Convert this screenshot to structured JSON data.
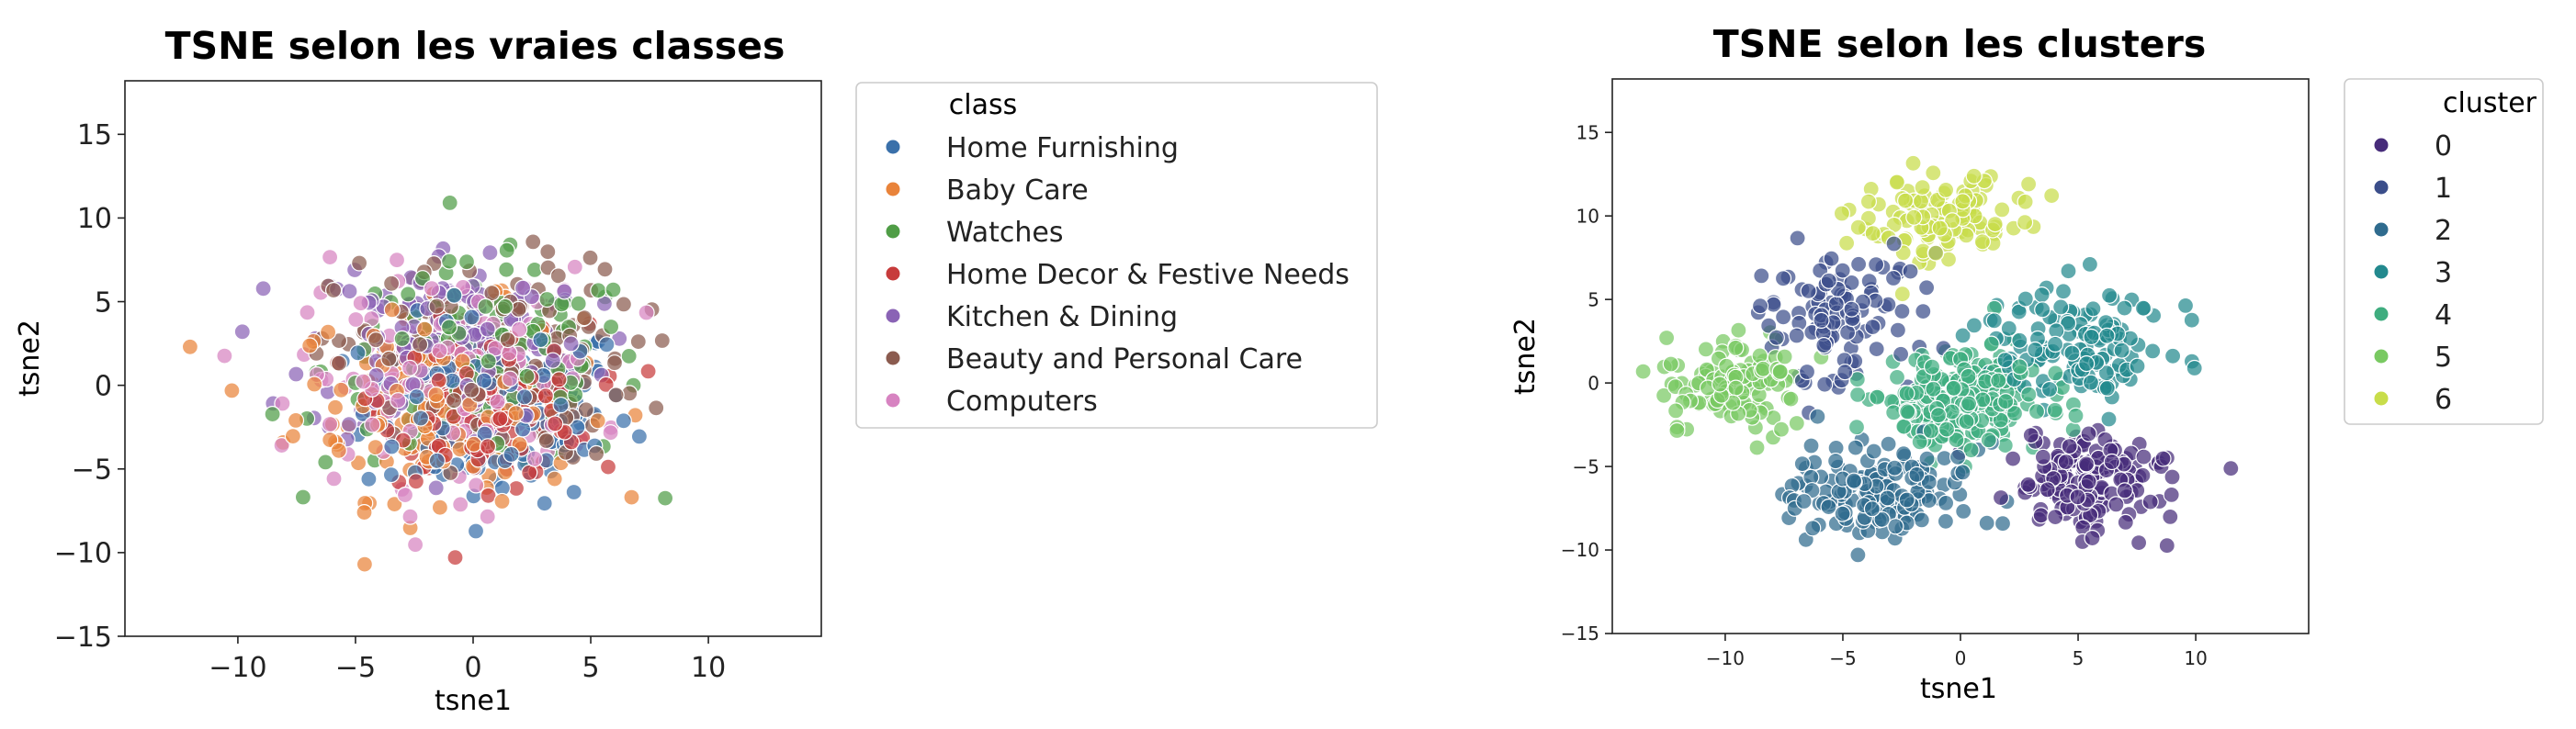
{
  "chart_data": [
    {
      "type": "scatter",
      "title": "TSNE selon les vraies classes",
      "xlabel": "tsne1",
      "ylabel": "tsne2",
      "xlim": [
        -14.8,
        14.8
      ],
      "ylim": [
        -15.0,
        18.2
      ],
      "x_ticks": [
        -10,
        -5,
        0,
        5,
        10
      ],
      "y_ticks": [
        -15,
        -10,
        -5,
        0,
        5,
        10,
        15
      ],
      "grid": false,
      "legend_placement": "outside-right",
      "legend_title": "class",
      "point_count_per_series": 150,
      "series": [
        {
          "name": "Home Furnishing",
          "color": "#3a70aa",
          "center": [
            1.0,
            -1.5
          ],
          "spread": [
            5.2,
            5.0
          ]
        },
        {
          "name": "Baby Care",
          "color": "#e9833a",
          "center": [
            -1.5,
            -1.0
          ],
          "spread": [
            5.5,
            5.2
          ]
        },
        {
          "name": "Watches",
          "color": "#4f9d46",
          "center": [
            0.5,
            1.0
          ],
          "spread": [
            6.2,
            5.5
          ]
        },
        {
          "name": "Home Decor & Festive Needs",
          "color": "#c73b3b",
          "center": [
            0.5,
            -1.0
          ],
          "spread": [
            4.0,
            4.2
          ]
        },
        {
          "name": "Kitchen & Dining",
          "color": "#8a63b5",
          "center": [
            -1.0,
            2.5
          ],
          "spread": [
            5.5,
            5.5
          ]
        },
        {
          "name": "Beauty and Personal Care",
          "color": "#8b5b4f",
          "center": [
            0.5,
            1.5
          ],
          "spread": [
            5.8,
            5.5
          ]
        },
        {
          "name": "Computers",
          "color": "#d783c1",
          "center": [
            -1.0,
            0.5
          ],
          "spread": [
            5.8,
            5.8
          ]
        }
      ]
    },
    {
      "type": "scatter",
      "title": "TSNE selon les clusters",
      "xlabel": "tsne1",
      "ylabel": "tsne2",
      "xlim": [
        -14.8,
        14.8
      ],
      "ylim": [
        -15.0,
        18.2
      ],
      "x_ticks": [
        -10,
        -5,
        0,
        5,
        10
      ],
      "y_ticks": [
        -15,
        -10,
        -5,
        0,
        5,
        10,
        15
      ],
      "grid": false,
      "legend_placement": "outside-right",
      "legend_title": "cluster",
      "series": [
        {
          "name": "0",
          "color": "#472c7a",
          "center": [
            5.5,
            -6.0
          ],
          "spread": [
            3.2,
            2.8
          ],
          "count": 150
        },
        {
          "name": "1",
          "color": "#3b4e8a",
          "center": [
            -5.5,
            4.0
          ],
          "spread": [
            3.2,
            3.5
          ],
          "count": 110
        },
        {
          "name": "2",
          "color": "#2f6b8e",
          "center": [
            -3.5,
            -6.5
          ],
          "spread": [
            3.5,
            2.6
          ],
          "count": 150
        },
        {
          "name": "3",
          "color": "#23898e",
          "center": [
            5.0,
            2.5
          ],
          "spread": [
            3.5,
            3.2
          ],
          "count": 130
        },
        {
          "name": "4",
          "color": "#3fad7f",
          "center": [
            0.0,
            -1.0
          ],
          "spread": [
            3.0,
            2.6
          ],
          "count": 260
        },
        {
          "name": "5",
          "color": "#79c962",
          "center": [
            -9.5,
            0.0
          ],
          "spread": [
            2.6,
            2.8
          ],
          "count": 110
        },
        {
          "name": "6",
          "color": "#c8dd4a",
          "center": [
            -0.5,
            10.0
          ],
          "spread": [
            3.2,
            2.5
          ],
          "count": 110
        }
      ]
    }
  ]
}
